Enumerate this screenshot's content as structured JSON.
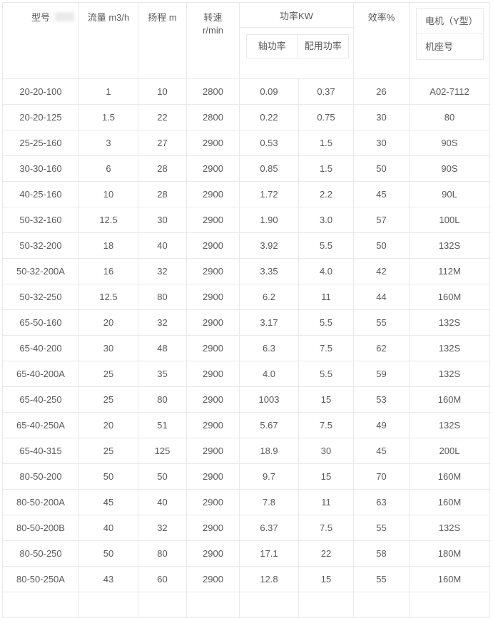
{
  "table": {
    "headers": {
      "model": "型号",
      "flow": "流量 m3/h",
      "head": "扬程 m",
      "speed_line1": "转速",
      "speed_line2": "r/min",
      "power_group": "功率KW",
      "shaft_power": "轴功率",
      "rated_power": "配用功率",
      "efficiency": "效率%",
      "motor_line1": "电机（Y型）",
      "motor_line2": "机座号"
    },
    "rows": [
      [
        "20-20-100",
        "1",
        "10",
        "2800",
        "0.09",
        "0.37",
        "26",
        "A02-7112"
      ],
      [
        "20-20-125",
        "1.5",
        "22",
        "2800",
        "0.22",
        "0.75",
        "30",
        "80"
      ],
      [
        "25-25-160",
        "3",
        "27",
        "2900",
        "0.53",
        "1.5",
        "30",
        "90S"
      ],
      [
        "30-30-160",
        "6",
        "28",
        "2900",
        "0.85",
        "1.5",
        "50",
        "90S"
      ],
      [
        "40-25-160",
        "10",
        "28",
        "2900",
        "1.72",
        "2.2",
        "45",
        "90L"
      ],
      [
        "50-32-160",
        "12.5",
        "30",
        "2900",
        "1.90",
        "3.0",
        "57",
        "100L"
      ],
      [
        "50-32-200",
        "18",
        "40",
        "2900",
        "3.92",
        "5.5",
        "50",
        "132S"
      ],
      [
        "50-32-200A",
        "16",
        "32",
        "2900",
        "3.35",
        "4.0",
        "42",
        "112M"
      ],
      [
        "50-32-250",
        "12.5",
        "80",
        "2900",
        "6.2",
        "11",
        "44",
        "160M"
      ],
      [
        "65-50-160",
        "20",
        "32",
        "2900",
        "3.17",
        "5.5",
        "55",
        "132S"
      ],
      [
        "65-40-200",
        "30",
        "48",
        "2900",
        "6.3",
        "7.5",
        "62",
        "132S"
      ],
      [
        "65-40-200A",
        "25",
        "35",
        "2900",
        "4.0",
        "5.5",
        "59",
        "132S"
      ],
      [
        "65-40-250",
        "25",
        "80",
        "2900",
        "1003",
        "15",
        "53",
        "160M"
      ],
      [
        "65-40-250A",
        "20",
        "51",
        "2900",
        "5.67",
        "7.5",
        "49",
        "132S"
      ],
      [
        "65-40-315",
        "25",
        "125",
        "2900",
        "18.9",
        "30",
        "45",
        "200L"
      ],
      [
        "80-50-200",
        "50",
        "50",
        "2900",
        "9.7",
        "15",
        "70",
        "160M"
      ],
      [
        "80-50-200A",
        "45",
        "40",
        "2900",
        "7.8",
        "11",
        "63",
        "160M"
      ],
      [
        "80-50-200B",
        "40",
        "32",
        "2900",
        "6.37",
        "7.5",
        "55",
        "132S"
      ],
      [
        "80-50-250",
        "50",
        "80",
        "2900",
        "17.1",
        "22",
        "58",
        "180M"
      ],
      [
        "80-50-250A",
        "43",
        "60",
        "2900",
        "12.8",
        "15",
        "55",
        "160M"
      ]
    ],
    "colors": {
      "border": "#e9e9e9",
      "text": "#595959",
      "background": "#ffffff"
    }
  }
}
